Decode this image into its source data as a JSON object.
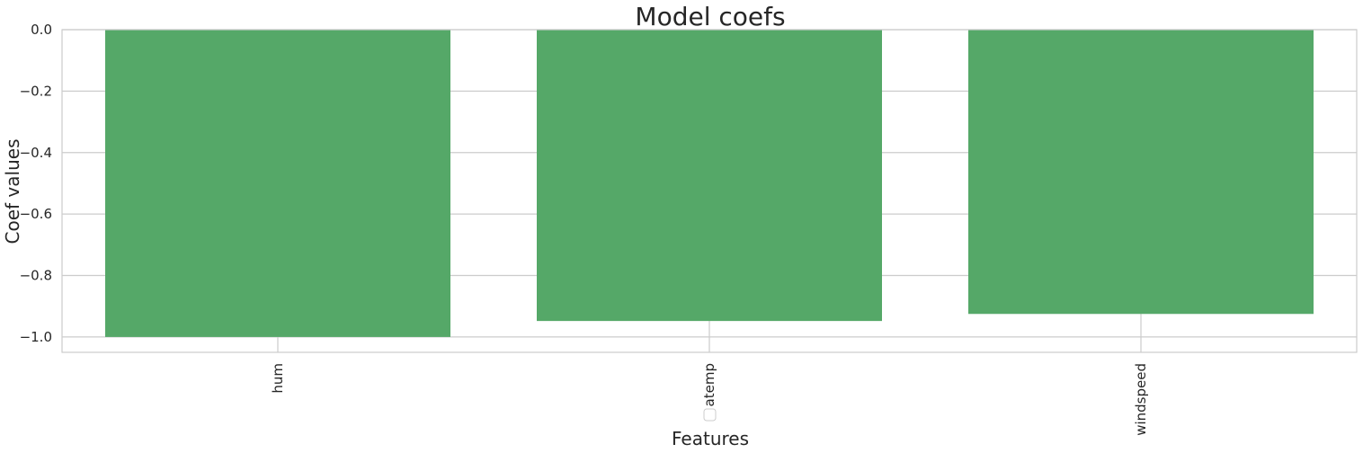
{
  "chart_data": {
    "type": "bar",
    "title": "Model coefs",
    "xlabel": "Features",
    "ylabel": "Coef values",
    "categories": [
      "hum",
      "atemp",
      "windspeed"
    ],
    "values": [
      -1.0,
      -0.948,
      -0.925
    ],
    "ylim": [
      -1.05,
      0.0
    ],
    "yticks": [
      0.0,
      -0.2,
      -0.4,
      -0.6,
      -0.8,
      -1.0
    ],
    "ytick_labels": [
      "0.0",
      "−0.2",
      "−0.4",
      "−0.6",
      "−0.8",
      "−1.0"
    ],
    "grid": true,
    "bar_color": "#55a868",
    "grid_color": "#cccccc",
    "legend": {
      "visible": true,
      "entries": []
    }
  }
}
